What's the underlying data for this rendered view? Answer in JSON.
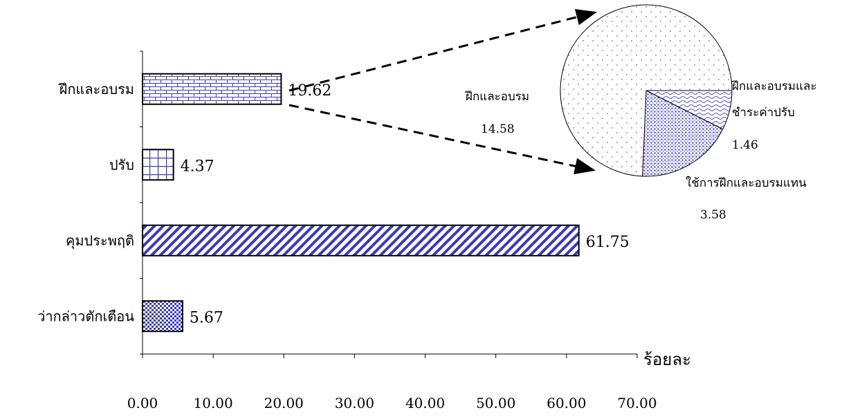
{
  "chart_data": [
    {
      "type": "bar",
      "orientation": "horizontal",
      "categories": [
        "ฝึกและอบรม",
        "ปรับ",
        "คุมประพฤติ",
        "ว่ากล่าวตักเตือน"
      ],
      "values": [
        19.62,
        4.37,
        61.75,
        5.67
      ],
      "value_labels": [
        "19.62",
        "4.37",
        "61.75",
        "5.67"
      ],
      "xlabel": "ร้อยละ",
      "xlim": [
        0,
        70
      ],
      "xticks": [
        0,
        10,
        20,
        30,
        40,
        50,
        60,
        70
      ],
      "xtick_labels": [
        "0.00",
        "10.00",
        "20.00",
        "30.00",
        "40.00",
        "50.00",
        "60.00",
        "70.00"
      ],
      "grid": false,
      "legend": "none",
      "bar_color": "#3333aa",
      "fill_patterns": [
        "brick",
        "grid",
        "diagonal-stripes",
        "checker"
      ]
    },
    {
      "type": "pie",
      "breakdown_of": "ฝึกและอบรม",
      "slices": [
        {
          "label": "ฝึกและอบรม",
          "value": 14.58,
          "value_label": "14.58",
          "pattern": "dots-sparse"
        },
        {
          "label": "ฝึกและอบรมและชำระค่าปรับ",
          "label_lines": [
            "ฝึกและอบรมและ",
            "ชำระค่าปรับ"
          ],
          "value": 1.46,
          "value_label": "1.46",
          "pattern": "wave"
        },
        {
          "label": "ใช้การฝึกและอบรมแทน",
          "value": 3.58,
          "value_label": "3.58",
          "pattern": "dots-dense"
        }
      ],
      "pattern_color": "#5555cc",
      "callout": "dashed-arrows"
    }
  ]
}
